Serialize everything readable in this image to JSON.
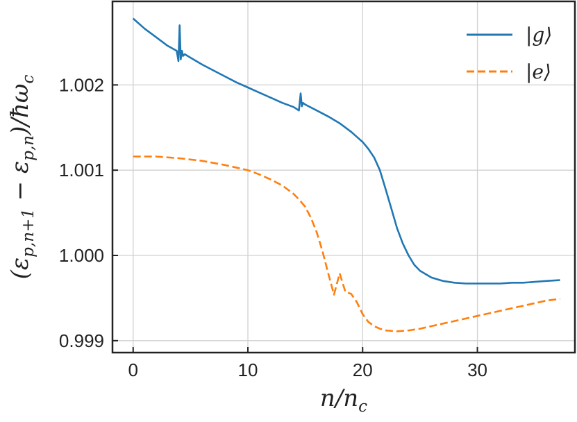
{
  "chart_data": {
    "type": "line",
    "title": "",
    "xlabel": "n/n_c",
    "ylabel": "(ε_{p,n+1} − ε_{p,n})/ħω_c",
    "xlabel_parts": {
      "var": "n/n",
      "sub": "c"
    },
    "ylabel_parts": [
      "(ε",
      "p,n+1",
      " − ε",
      "p,n",
      ")/ħω",
      "c"
    ],
    "xlim": [
      -1.8,
      38.5
    ],
    "ylim": [
      0.99886,
      0.0
    ],
    "ylim_real": [
      0.99886,
      1.00298
    ],
    "xticks": [
      0,
      10,
      20,
      30
    ],
    "xtick_labels": [
      "0",
      "10",
      "20",
      "30"
    ],
    "yticks": [
      0.999,
      1.0,
      1.001,
      1.002
    ],
    "ytick_labels": [
      "0.999",
      "1.000",
      "1.001",
      "1.002"
    ],
    "grid": true,
    "legend_position": "top-right",
    "series": [
      {
        "name": "|g⟩",
        "color": "#1f77b4",
        "dash": "solid",
        "x": [
          0,
          1,
          2,
          3,
          3.8,
          3.95,
          4.05,
          4.15,
          4.25,
          4.35,
          4.5,
          5,
          6,
          7,
          8,
          9,
          10,
          11,
          12,
          13,
          14,
          14.45,
          14.6,
          14.7,
          14.8,
          15,
          16,
          17,
          18,
          19,
          20,
          20.5,
          21,
          21.5,
          22,
          22.5,
          23,
          23.5,
          24,
          24.5,
          25,
          26,
          27,
          28,
          29,
          30,
          31,
          32,
          33,
          34,
          35,
          36,
          37.2
        ],
        "y": [
          1.00278,
          1.00266,
          1.00256,
          1.00246,
          1.0024,
          1.00228,
          1.0027,
          1.0023,
          1.0024,
          1.00234,
          1.00236,
          1.00232,
          1.00224,
          1.00217,
          1.0021,
          1.00203,
          1.00197,
          1.00191,
          1.00185,
          1.00179,
          1.00174,
          1.0017,
          1.0019,
          1.00175,
          1.00179,
          1.00177,
          1.0017,
          1.00163,
          1.00155,
          1.00145,
          1.00133,
          1.00125,
          1.00115,
          1.001,
          1.00078,
          1.00055,
          1.00032,
          1.00014,
          1.0,
          0.99989,
          0.99982,
          0.99974,
          0.9997,
          0.99968,
          0.99967,
          0.99967,
          0.99967,
          0.99967,
          0.99968,
          0.99968,
          0.99969,
          0.9997,
          0.99971
        ]
      },
      {
        "name": "|e⟩",
        "color": "#ff7f0e",
        "dash": "dashed",
        "x": [
          0,
          2,
          4,
          6,
          8,
          10,
          11,
          12,
          13,
          14,
          14.5,
          15,
          15.5,
          16,
          16.5,
          17,
          17.5,
          18,
          18.5,
          19,
          19.5,
          20,
          20.5,
          21,
          21.5,
          22,
          23,
          24,
          25,
          26,
          27,
          28,
          29,
          30,
          31,
          32,
          33,
          34,
          35,
          36,
          37.2
        ],
        "y": [
          1.00116,
          1.00116,
          1.00114,
          1.00111,
          1.00106,
          1.001,
          1.00095,
          1.00089,
          1.00082,
          1.00072,
          1.00065,
          1.00057,
          1.00044,
          1.00027,
          1.00005,
          0.99979,
          0.99954,
          0.99979,
          0.99957,
          0.99955,
          0.99945,
          0.99931,
          0.99922,
          0.99917,
          0.99914,
          0.99912,
          0.99911,
          0.99912,
          0.99914,
          0.99917,
          0.9992,
          0.99923,
          0.99926,
          0.99929,
          0.99932,
          0.99935,
          0.99938,
          0.99941,
          0.99944,
          0.99947,
          0.99949
        ]
      }
    ]
  }
}
